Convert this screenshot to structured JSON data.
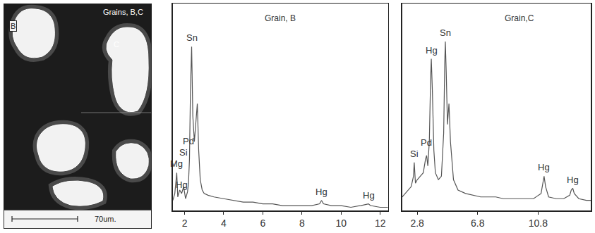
{
  "chart_data": [
    {
      "type": "line",
      "title": "Grain, B",
      "color": "#555555",
      "grid": false,
      "tick_labels": "x",
      "xlim": [
        1.4,
        12.4
      ],
      "xticks": [
        2,
        4,
        6,
        8,
        10,
        12
      ],
      "ylim": [
        0,
        120
      ],
      "x": [
        1.4,
        1.5,
        1.6,
        1.65,
        1.75,
        1.85,
        1.95,
        2.05,
        2.15,
        2.2,
        2.25,
        2.3,
        2.36,
        2.42,
        2.5,
        2.58,
        2.65,
        2.72,
        2.8,
        2.9,
        3.0,
        3.2,
        3.5,
        4.0,
        4.5,
        5.0,
        5.5,
        6.0,
        6.5,
        7.0,
        7.5,
        8.0,
        8.5,
        8.9,
        9.0,
        9.1,
        9.5,
        10.0,
        10.5,
        11.0,
        11.4,
        11.5,
        12.0,
        12.4
      ],
      "values": [
        6,
        10,
        22,
        8,
        12,
        10,
        14,
        7,
        11,
        16,
        30,
        70,
        95,
        55,
        40,
        52,
        62,
        35,
        18,
        12,
        10,
        9,
        8,
        7,
        6,
        5,
        5,
        4,
        4,
        3,
        3,
        3,
        3,
        4,
        6,
        4,
        3,
        3,
        2,
        3,
        4,
        3,
        2,
        2
      ],
      "annotations": [
        {
          "text": "Mg",
          "x": 1.6
        },
        {
          "text": "Hg",
          "x": 1.85
        },
        {
          "text": "Si",
          "x": 1.95
        },
        {
          "text": "Pd",
          "x": 2.2
        },
        {
          "text": "Sn",
          "x": 2.36
        },
        {
          "text": "Hg",
          "x": 9.0
        },
        {
          "text": "Hg",
          "x": 11.4
        }
      ]
    },
    {
      "type": "line",
      "title": "Grain,C",
      "color": "#555555",
      "grid": false,
      "tick_labels": "x",
      "xlim": [
        1.8,
        14.3
      ],
      "xticks": [
        2.8,
        6.8,
        10.8
      ],
      "ylim": [
        0,
        120
      ],
      "x": [
        1.8,
        2.0,
        2.2,
        2.4,
        2.55,
        2.6,
        2.68,
        2.8,
        3.0,
        3.2,
        3.35,
        3.42,
        3.5,
        3.6,
        3.68,
        3.73,
        3.8,
        3.9,
        4.0,
        4.2,
        4.4,
        4.55,
        4.62,
        4.66,
        4.72,
        4.8,
        4.9,
        5.0,
        5.2,
        5.5,
        6.0,
        6.5,
        7.0,
        7.5,
        8.0,
        8.5,
        9.0,
        9.5,
        10.0,
        10.5,
        11.0,
        11.1,
        11.2,
        11.3,
        11.5,
        12.0,
        12.5,
        12.9,
        13.0,
        13.1,
        13.2,
        13.5,
        14.0,
        14.3
      ],
      "values": [
        8,
        10,
        12,
        14,
        20,
        28,
        16,
        18,
        20,
        22,
        30,
        32,
        26,
        40,
        75,
        88,
        70,
        35,
        22,
        18,
        20,
        45,
        85,
        98,
        80,
        50,
        62,
        40,
        18,
        12,
        10,
        9,
        8,
        8,
        8,
        7,
        7,
        7,
        7,
        7,
        10,
        16,
        20,
        14,
        8,
        7,
        7,
        9,
        12,
        13,
        10,
        7,
        6,
        6
      ],
      "annotations": [
        {
          "text": "Si",
          "x": 2.6
        },
        {
          "text": "Pd",
          "x": 3.42
        },
        {
          "text": "Hg",
          "x": 3.73
        },
        {
          "text": "Sn",
          "x": 4.66
        },
        {
          "text": "Hg",
          "x": 11.2
        },
        {
          "text": "Hg",
          "x": 13.1
        }
      ]
    }
  ],
  "image": {
    "label": "Grains, B,C",
    "grains": [
      "B",
      "C"
    ],
    "scale_bar": "70um."
  }
}
